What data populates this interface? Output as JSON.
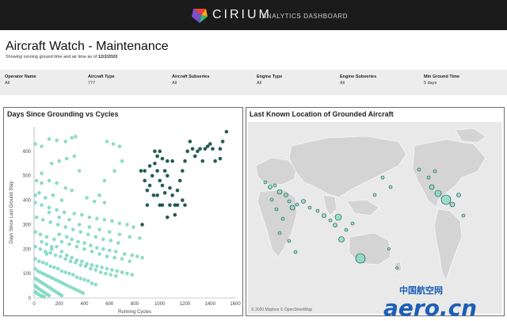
{
  "header": {
    "brand": "CIRIUM",
    "product": "ANALYTICS DASHBOARD",
    "brand_colors": [
      "#e83e3e",
      "#f5a623",
      "#2eb872",
      "#7b4fc9"
    ]
  },
  "page": {
    "title": "Aircraft Watch - Maintenance",
    "subtitle_prefix": "Showing running ground time and air time as of ",
    "subtitle_date": "12/2/2020"
  },
  "filters": [
    {
      "label": "Operator Name",
      "value": "All"
    },
    {
      "label": "Aircraft Type",
      "value": "777"
    },
    {
      "label": "Aircraft Subseries",
      "value": "All"
    },
    {
      "label": "Engine Type",
      "value": "All"
    },
    {
      "label": "Engine Subseries",
      "value": "All"
    },
    {
      "label": "Min Ground Time",
      "value": "5 days"
    }
  ],
  "scatter_panel": {
    "title": "Days Since Grounding vs Cycles"
  },
  "map_panel": {
    "title": "Last Known Location of Grounded Aircraft",
    "credit": "© 2020 Mapbox © OpenStreetMap"
  },
  "chart_data": [
    {
      "type": "scatter",
      "title": "Days Since Grounding vs Cycles",
      "xlabel": "Running Cycles",
      "ylabel": "Days Since Last Ground Stay",
      "xlim": [
        0,
        1600
      ],
      "ylim": [
        0,
        700
      ],
      "xticks": [
        0,
        200,
        400,
        600,
        800,
        1000,
        1200,
        1400,
        1600
      ],
      "yticks": [
        0,
        100,
        200,
        300,
        400,
        500,
        600
      ],
      "grid": false,
      "colors": {
        "light": "#7fd8c0",
        "dark": "#0c4a3e"
      },
      "series": [
        {
          "points": [
            [
              10,
              630
            ],
            [
              60,
              620
            ],
            [
              120,
              650
            ],
            [
              180,
              645
            ],
            [
              250,
              640
            ],
            [
              300,
              655
            ],
            [
              330,
              660
            ],
            [
              320,
              580
            ],
            [
              260,
              570
            ],
            [
              200,
              560
            ],
            [
              140,
              550
            ],
            [
              60,
              510
            ],
            [
              20,
              480
            ],
            [
              60,
              470
            ],
            [
              120,
              480
            ],
            [
              180,
              470
            ],
            [
              250,
              450
            ],
            [
              300,
              440
            ],
            [
              360,
              520
            ],
            [
              420,
              410
            ],
            [
              480,
              395
            ],
            [
              520,
              420
            ],
            [
              560,
              390
            ],
            [
              580,
              640
            ],
            [
              630,
              630
            ],
            [
              680,
              620
            ],
            [
              700,
              560
            ],
            [
              640,
              520
            ],
            [
              560,
              480
            ],
            [
              10,
              420
            ],
            [
              40,
              430
            ],
            [
              90,
              410
            ],
            [
              150,
              420
            ],
            [
              220,
              400
            ],
            [
              10,
              390
            ],
            [
              60,
              380
            ],
            [
              120,
              370
            ],
            [
              180,
              360
            ],
            [
              240,
              350
            ],
            [
              320,
              345
            ],
            [
              380,
              340
            ],
            [
              440,
              330
            ],
            [
              500,
              325
            ],
            [
              560,
              320
            ],
            [
              620,
              315
            ],
            [
              680,
              305
            ],
            [
              740,
              300
            ],
            [
              790,
              290
            ],
            [
              20,
              330
            ],
            [
              70,
              320
            ],
            [
              130,
              310
            ],
            [
              190,
              300
            ],
            [
              250,
              290
            ],
            [
              310,
              280
            ],
            [
              370,
              270
            ],
            [
              430,
              260
            ],
            [
              490,
              250
            ],
            [
              550,
              240
            ],
            [
              610,
              235
            ],
            [
              670,
              225
            ],
            [
              10,
              270
            ],
            [
              50,
              260
            ],
            [
              100,
              250
            ],
            [
              160,
              240
            ],
            [
              220,
              230
            ],
            [
              280,
              220
            ],
            [
              340,
              210
            ],
            [
              400,
              200
            ],
            [
              460,
              190
            ],
            [
              520,
              180
            ],
            [
              580,
              170
            ],
            [
              640,
              165
            ],
            [
              700,
              160
            ],
            [
              760,
              150
            ],
            [
              10,
              210
            ],
            [
              50,
              200
            ],
            [
              90,
              190
            ],
            [
              130,
              185
            ],
            [
              170,
              175
            ],
            [
              210,
              170
            ],
            [
              250,
              160
            ],
            [
              290,
              150
            ],
            [
              330,
              145
            ],
            [
              370,
              135
            ],
            [
              410,
              130
            ],
            [
              450,
              120
            ],
            [
              490,
              115
            ],
            [
              530,
              105
            ],
            [
              570,
              100
            ],
            [
              610,
              95
            ],
            [
              650,
              90
            ],
            [
              10,
              160
            ],
            [
              40,
              150
            ],
            [
              70,
              145
            ],
            [
              100,
              140
            ],
            [
              130,
              130
            ],
            [
              160,
              125
            ],
            [
              190,
              120
            ],
            [
              220,
              110
            ],
            [
              250,
              105
            ],
            [
              280,
              100
            ],
            [
              310,
              95
            ],
            [
              340,
              85
            ],
            [
              370,
              80
            ],
            [
              400,
              75
            ],
            [
              430,
              70
            ],
            [
              460,
              60
            ],
            [
              490,
              55
            ],
            [
              10,
              120
            ],
            [
              30,
              110
            ],
            [
              50,
              105
            ],
            [
              70,
              100
            ],
            [
              90,
              95
            ],
            [
              110,
              90
            ],
            [
              130,
              85
            ],
            [
              150,
              80
            ],
            [
              170,
              75
            ],
            [
              190,
              70
            ],
            [
              210,
              65
            ],
            [
              230,
              60
            ],
            [
              250,
              55
            ],
            [
              270,
              50
            ],
            [
              290,
              45
            ],
            [
              310,
              40
            ],
            [
              330,
              35
            ],
            [
              350,
              30
            ],
            [
              370,
              25
            ],
            [
              390,
              20
            ],
            [
              10,
              80
            ],
            [
              25,
              75
            ],
            [
              40,
              70
            ],
            [
              55,
              65
            ],
            [
              70,
              60
            ],
            [
              85,
              55
            ],
            [
              100,
              50
            ],
            [
              115,
              45
            ],
            [
              130,
              40
            ],
            [
              145,
              35
            ],
            [
              160,
              30
            ],
            [
              175,
              25
            ],
            [
              190,
              20
            ],
            [
              205,
              15
            ],
            [
              220,
              10
            ],
            [
              10,
              50
            ],
            [
              20,
              45
            ],
            [
              30,
              40
            ],
            [
              45,
              35
            ],
            [
              60,
              30
            ],
            [
              75,
              25
            ],
            [
              90,
              20
            ],
            [
              105,
              15
            ],
            [
              120,
              10
            ],
            [
              10,
              25
            ],
            [
              20,
              20
            ],
            [
              35,
              15
            ],
            [
              50,
              10
            ],
            [
              65,
              8
            ],
            [
              80,
              5
            ],
            [
              100,
              180
            ],
            [
              140,
              200
            ],
            [
              180,
              210
            ],
            [
              220,
              190
            ],
            [
              260,
              175
            ],
            [
              300,
              165
            ],
            [
              340,
              155
            ],
            [
              380,
              150
            ],
            [
              420,
              140
            ],
            [
              460,
              135
            ],
            [
              500,
              130
            ],
            [
              540,
              125
            ],
            [
              580,
              120
            ],
            [
              620,
              115
            ],
            [
              660,
              110
            ],
            [
              700,
              105
            ],
            [
              740,
              100
            ],
            [
              780,
              95
            ],
            [
              60,
              230
            ],
            [
              100,
              220
            ],
            [
              140,
              210
            ],
            [
              200,
              260
            ],
            [
              260,
              250
            ],
            [
              300,
              240
            ],
            [
              350,
              230
            ],
            [
              400,
              225
            ],
            [
              450,
              215
            ],
            [
              500,
              205
            ],
            [
              550,
              200
            ],
            [
              600,
              195
            ],
            [
              650,
              190
            ],
            [
              720,
              180
            ],
            [
              780,
              175
            ],
            [
              820,
              170
            ],
            [
              860,
              165
            ],
            [
              120,
              350
            ],
            [
              200,
              330
            ],
            [
              280,
              320
            ],
            [
              360,
              300
            ],
            [
              440,
              290
            ],
            [
              520,
              280
            ],
            [
              600,
              270
            ],
            [
              680,
              260
            ],
            [
              760,
              250
            ],
            [
              840,
              245
            ]
          ],
          "color": "#7fd8c0"
        },
        {
          "points": [
            [
              850,
              520
            ],
            [
              880,
              480
            ],
            [
              900,
              440
            ],
            [
              920,
              460
            ],
            [
              940,
              500
            ],
            [
              960,
              550
            ],
            [
              980,
              520
            ],
            [
              1000,
              480
            ],
            [
              1020,
              460
            ],
            [
              1040,
              520
            ],
            [
              1060,
              500
            ],
            [
              1080,
              450
            ],
            [
              1100,
              420
            ],
            [
              1120,
              380
            ],
            [
              1140,
              440
            ],
            [
              1160,
              480
            ],
            [
              1180,
              520
            ],
            [
              1200,
              560
            ],
            [
              1220,
              600
            ],
            [
              1240,
              640
            ],
            [
              1260,
              610
            ],
            [
              1280,
              580
            ],
            [
              1300,
              600
            ],
            [
              1320,
              610
            ],
            [
              1340,
              560
            ],
            [
              1360,
              610
            ],
            [
              1380,
              620
            ],
            [
              1400,
              630
            ],
            [
              1420,
              610
            ],
            [
              1440,
              560
            ],
            [
              1480,
              610
            ],
            [
              1500,
              640
            ],
            [
              1530,
              680
            ],
            [
              1480,
              570
            ],
            [
              1000,
              600
            ],
            [
              980,
              580
            ],
            [
              1020,
              570
            ],
            [
              960,
              600
            ],
            [
              1060,
              560
            ],
            [
              1100,
              560
            ],
            [
              1000,
              380
            ],
            [
              980,
              420
            ],
            [
              1040,
              430
            ],
            [
              1080,
              380
            ],
            [
              1140,
              380
            ],
            [
              1180,
              400
            ],
            [
              880,
              520
            ],
            [
              920,
              540
            ],
            [
              950,
              420
            ],
            [
              900,
              380
            ],
            [
              860,
              300
            ],
            [
              1020,
              380
            ],
            [
              1060,
              330
            ],
            [
              1120,
              340
            ],
            [
              1200,
              380
            ]
          ],
          "color": "#0c4a3e"
        }
      ]
    }
  ]
}
